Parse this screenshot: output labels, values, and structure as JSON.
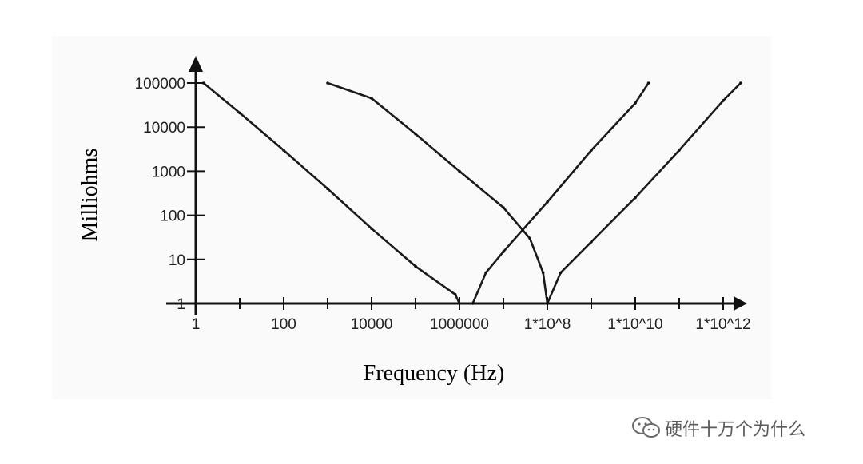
{
  "chart_data": {
    "type": "line",
    "title": "",
    "xlabel": "Frequency (Hz)",
    "ylabel": "Milliohms",
    "x_scale": "log",
    "y_scale": "log",
    "xlim": [
      1,
      1000000000000.0
    ],
    "ylim": [
      1,
      100000
    ],
    "x_ticks": [
      {
        "value": 1,
        "label": "1"
      },
      {
        "value": 100,
        "label": "100"
      },
      {
        "value": 10000,
        "label": "10000"
      },
      {
        "value": 1000000,
        "label": "1000000"
      },
      {
        "value": 100000000.0,
        "label": "1*10^8"
      },
      {
        "value": 10000000000.0,
        "label": "1*10^10"
      },
      {
        "value": 1000000000000.0,
        "label": "1*10^12"
      }
    ],
    "y_ticks": [
      {
        "value": 1,
        "label": "1"
      },
      {
        "value": 10,
        "label": "10"
      },
      {
        "value": 100,
        "label": "100"
      },
      {
        "value": 1000,
        "label": "1000"
      },
      {
        "value": 10000,
        "label": "10000"
      },
      {
        "value": 100000,
        "label": "100000"
      }
    ],
    "series": [
      {
        "values": [
          [
            1.5,
            100000
          ],
          [
            10,
            21000
          ],
          [
            100,
            3000
          ],
          [
            1000,
            400
          ],
          [
            10000,
            50
          ],
          [
            100000,
            7
          ],
          [
            800000,
            1.6
          ],
          [
            1000000,
            1
          ]
        ]
      },
      {
        "values": [
          [
            1000.0,
            100000
          ],
          [
            10000.0,
            45000
          ],
          [
            100000.0,
            7000
          ],
          [
            1000000.0,
            1000
          ],
          [
            10000000.0,
            150
          ],
          [
            40000000.0,
            30
          ],
          [
            80000000.0,
            5
          ],
          [
            100000000.0,
            1
          ]
        ]
      },
      {
        "values": [
          [
            2000000.0,
            1
          ],
          [
            4000000.0,
            5
          ],
          [
            10000000.0,
            15
          ],
          [
            100000000.0,
            200
          ],
          [
            1000000000.0,
            3000
          ],
          [
            10000000000.0,
            35000
          ],
          [
            20000000000.0,
            100000
          ]
        ]
      },
      {
        "values": [
          [
            100000000.0,
            1
          ],
          [
            200000000.0,
            5
          ],
          [
            1000000000.0,
            25
          ],
          [
            10000000000.0,
            250
          ],
          [
            100000000000.0,
            3000
          ],
          [
            1000000000000.0,
            40000
          ],
          [
            2500000000000.0,
            100000
          ]
        ]
      }
    ],
    "grid": false,
    "legend": "none"
  },
  "watermark": {
    "text": "硬件十万个为什么",
    "icon": "wechat-icon"
  }
}
